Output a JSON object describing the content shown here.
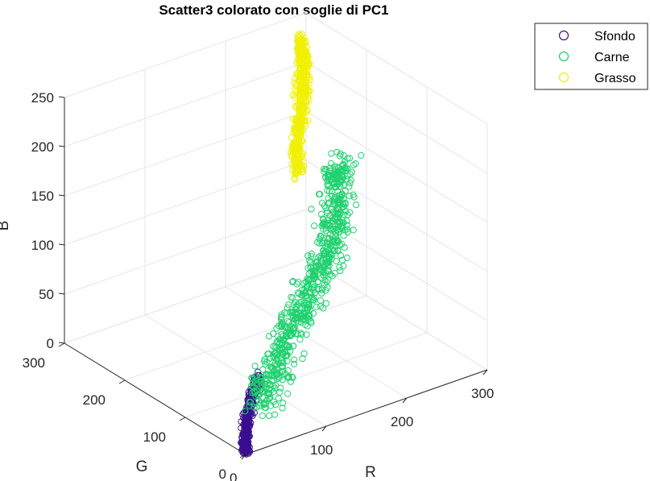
{
  "chart_data": {
    "type": "scatter",
    "title": "Scatter3 colorato con soglie di PC1",
    "xlabel": "R",
    "ylabel": "G",
    "zlabel": "B",
    "xlim": [
      0,
      300
    ],
    "ylim": [
      0,
      300
    ],
    "zlim": [
      0,
      250
    ],
    "x_ticks": [
      0,
      100,
      200,
      300
    ],
    "y_ticks": [
      0,
      100,
      200,
      300
    ],
    "z_ticks": [
      0,
      50,
      100,
      150,
      200,
      250
    ],
    "x_tick_labels": [
      "0",
      "100",
      "200",
      "300"
    ],
    "y_tick_labels": [
      "0",
      "100",
      "200",
      "300"
    ],
    "z_tick_labels": [
      "0",
      "50",
      "100",
      "150",
      "200",
      "250"
    ],
    "grid": true,
    "legend_position": "top-right",
    "series": [
      {
        "name": "Sfondo",
        "color": "#3a0f8f",
        "marker": "circle-open",
        "points": [
          {
            "r": 0,
            "g": 0,
            "b": 0
          },
          {
            "r": 3,
            "g": 4,
            "b": 5
          },
          {
            "r": 6,
            "g": 8,
            "b": 10
          },
          {
            "r": 10,
            "g": 12,
            "b": 15
          },
          {
            "r": 15,
            "g": 18,
            "b": 22
          },
          {
            "r": 22,
            "g": 25,
            "b": 28
          },
          {
            "r": 30,
            "g": 32,
            "b": 35
          },
          {
            "r": 40,
            "g": 38,
            "b": 42
          },
          {
            "r": 48,
            "g": 45,
            "b": 48
          }
        ]
      },
      {
        "name": "Carne",
        "color": "#1fd16e",
        "marker": "circle-open",
        "points": [
          {
            "r": 40,
            "g": 30,
            "b": 30
          },
          {
            "r": 60,
            "g": 40,
            "b": 35
          },
          {
            "r": 80,
            "g": 55,
            "b": 45
          },
          {
            "r": 100,
            "g": 70,
            "b": 60
          },
          {
            "r": 120,
            "g": 80,
            "b": 70
          },
          {
            "r": 140,
            "g": 90,
            "b": 80
          },
          {
            "r": 160,
            "g": 100,
            "b": 90
          },
          {
            "r": 180,
            "g": 110,
            "b": 100
          },
          {
            "r": 200,
            "g": 125,
            "b": 110
          },
          {
            "r": 215,
            "g": 140,
            "b": 120
          },
          {
            "r": 230,
            "g": 155,
            "b": 135
          },
          {
            "r": 240,
            "g": 170,
            "b": 150
          },
          {
            "r": 250,
            "g": 175,
            "b": 155
          }
        ]
      },
      {
        "name": "Grasso",
        "color": "#f0f000",
        "marker": "circle-open",
        "points": [
          {
            "r": 200,
            "g": 180,
            "b": 160
          },
          {
            "r": 210,
            "g": 195,
            "b": 175
          },
          {
            "r": 220,
            "g": 205,
            "b": 190
          },
          {
            "r": 230,
            "g": 215,
            "b": 205
          },
          {
            "r": 240,
            "g": 225,
            "b": 220
          },
          {
            "r": 248,
            "g": 235,
            "b": 235
          },
          {
            "r": 252,
            "g": 242,
            "b": 245
          },
          {
            "r": 255,
            "g": 250,
            "b": 255
          }
        ]
      }
    ]
  }
}
